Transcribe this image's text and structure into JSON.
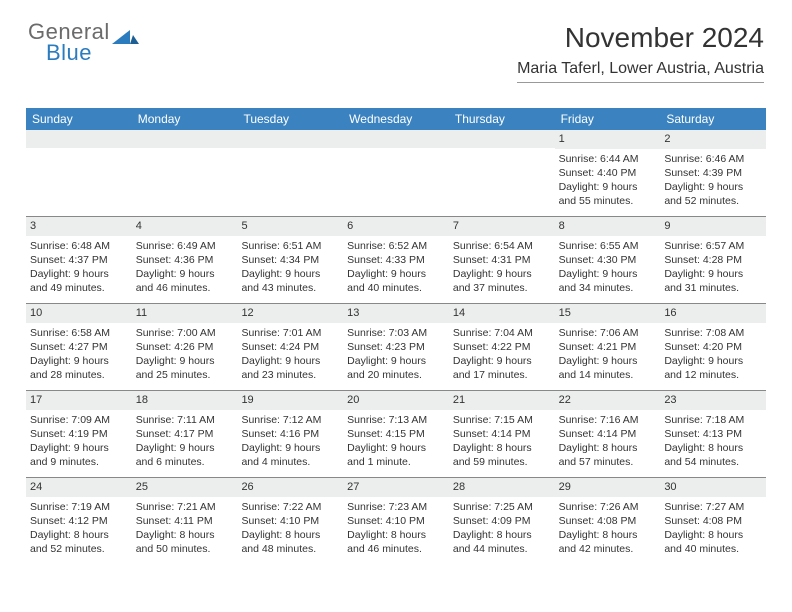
{
  "logo": {
    "word1": "General",
    "word2": "Blue"
  },
  "title": "November 2024",
  "location": "Maria Taferl, Lower Austria, Austria",
  "day_names": [
    "Sunday",
    "Monday",
    "Tuesday",
    "Wednesday",
    "Thursday",
    "Friday",
    "Saturday"
  ],
  "colors": {
    "header_bg": "#3b83c0",
    "header_text": "#ffffff",
    "daynum_bg": "#eceded",
    "text": "#333333",
    "logo_gray": "#6b6b6b",
    "logo_blue": "#2b7bbf"
  },
  "weeks": [
    [
      null,
      null,
      null,
      null,
      null,
      {
        "n": "1",
        "sr": "Sunrise: 6:44 AM",
        "ss": "Sunset: 4:40 PM",
        "d1": "Daylight: 9 hours",
        "d2": "and 55 minutes."
      },
      {
        "n": "2",
        "sr": "Sunrise: 6:46 AM",
        "ss": "Sunset: 4:39 PM",
        "d1": "Daylight: 9 hours",
        "d2": "and 52 minutes."
      }
    ],
    [
      {
        "n": "3",
        "sr": "Sunrise: 6:48 AM",
        "ss": "Sunset: 4:37 PM",
        "d1": "Daylight: 9 hours",
        "d2": "and 49 minutes."
      },
      {
        "n": "4",
        "sr": "Sunrise: 6:49 AM",
        "ss": "Sunset: 4:36 PM",
        "d1": "Daylight: 9 hours",
        "d2": "and 46 minutes."
      },
      {
        "n": "5",
        "sr": "Sunrise: 6:51 AM",
        "ss": "Sunset: 4:34 PM",
        "d1": "Daylight: 9 hours",
        "d2": "and 43 minutes."
      },
      {
        "n": "6",
        "sr": "Sunrise: 6:52 AM",
        "ss": "Sunset: 4:33 PM",
        "d1": "Daylight: 9 hours",
        "d2": "and 40 minutes."
      },
      {
        "n": "7",
        "sr": "Sunrise: 6:54 AM",
        "ss": "Sunset: 4:31 PM",
        "d1": "Daylight: 9 hours",
        "d2": "and 37 minutes."
      },
      {
        "n": "8",
        "sr": "Sunrise: 6:55 AM",
        "ss": "Sunset: 4:30 PM",
        "d1": "Daylight: 9 hours",
        "d2": "and 34 minutes."
      },
      {
        "n": "9",
        "sr": "Sunrise: 6:57 AM",
        "ss": "Sunset: 4:28 PM",
        "d1": "Daylight: 9 hours",
        "d2": "and 31 minutes."
      }
    ],
    [
      {
        "n": "10",
        "sr": "Sunrise: 6:58 AM",
        "ss": "Sunset: 4:27 PM",
        "d1": "Daylight: 9 hours",
        "d2": "and 28 minutes."
      },
      {
        "n": "11",
        "sr": "Sunrise: 7:00 AM",
        "ss": "Sunset: 4:26 PM",
        "d1": "Daylight: 9 hours",
        "d2": "and 25 minutes."
      },
      {
        "n": "12",
        "sr": "Sunrise: 7:01 AM",
        "ss": "Sunset: 4:24 PM",
        "d1": "Daylight: 9 hours",
        "d2": "and 23 minutes."
      },
      {
        "n": "13",
        "sr": "Sunrise: 7:03 AM",
        "ss": "Sunset: 4:23 PM",
        "d1": "Daylight: 9 hours",
        "d2": "and 20 minutes."
      },
      {
        "n": "14",
        "sr": "Sunrise: 7:04 AM",
        "ss": "Sunset: 4:22 PM",
        "d1": "Daylight: 9 hours",
        "d2": "and 17 minutes."
      },
      {
        "n": "15",
        "sr": "Sunrise: 7:06 AM",
        "ss": "Sunset: 4:21 PM",
        "d1": "Daylight: 9 hours",
        "d2": "and 14 minutes."
      },
      {
        "n": "16",
        "sr": "Sunrise: 7:08 AM",
        "ss": "Sunset: 4:20 PM",
        "d1": "Daylight: 9 hours",
        "d2": "and 12 minutes."
      }
    ],
    [
      {
        "n": "17",
        "sr": "Sunrise: 7:09 AM",
        "ss": "Sunset: 4:19 PM",
        "d1": "Daylight: 9 hours",
        "d2": "and 9 minutes."
      },
      {
        "n": "18",
        "sr": "Sunrise: 7:11 AM",
        "ss": "Sunset: 4:17 PM",
        "d1": "Daylight: 9 hours",
        "d2": "and 6 minutes."
      },
      {
        "n": "19",
        "sr": "Sunrise: 7:12 AM",
        "ss": "Sunset: 4:16 PM",
        "d1": "Daylight: 9 hours",
        "d2": "and 4 minutes."
      },
      {
        "n": "20",
        "sr": "Sunrise: 7:13 AM",
        "ss": "Sunset: 4:15 PM",
        "d1": "Daylight: 9 hours",
        "d2": "and 1 minute."
      },
      {
        "n": "21",
        "sr": "Sunrise: 7:15 AM",
        "ss": "Sunset: 4:14 PM",
        "d1": "Daylight: 8 hours",
        "d2": "and 59 minutes."
      },
      {
        "n": "22",
        "sr": "Sunrise: 7:16 AM",
        "ss": "Sunset: 4:14 PM",
        "d1": "Daylight: 8 hours",
        "d2": "and 57 minutes."
      },
      {
        "n": "23",
        "sr": "Sunrise: 7:18 AM",
        "ss": "Sunset: 4:13 PM",
        "d1": "Daylight: 8 hours",
        "d2": "and 54 minutes."
      }
    ],
    [
      {
        "n": "24",
        "sr": "Sunrise: 7:19 AM",
        "ss": "Sunset: 4:12 PM",
        "d1": "Daylight: 8 hours",
        "d2": "and 52 minutes."
      },
      {
        "n": "25",
        "sr": "Sunrise: 7:21 AM",
        "ss": "Sunset: 4:11 PM",
        "d1": "Daylight: 8 hours",
        "d2": "and 50 minutes."
      },
      {
        "n": "26",
        "sr": "Sunrise: 7:22 AM",
        "ss": "Sunset: 4:10 PM",
        "d1": "Daylight: 8 hours",
        "d2": "and 48 minutes."
      },
      {
        "n": "27",
        "sr": "Sunrise: 7:23 AM",
        "ss": "Sunset: 4:10 PM",
        "d1": "Daylight: 8 hours",
        "d2": "and 46 minutes."
      },
      {
        "n": "28",
        "sr": "Sunrise: 7:25 AM",
        "ss": "Sunset: 4:09 PM",
        "d1": "Daylight: 8 hours",
        "d2": "and 44 minutes."
      },
      {
        "n": "29",
        "sr": "Sunrise: 7:26 AM",
        "ss": "Sunset: 4:08 PM",
        "d1": "Daylight: 8 hours",
        "d2": "and 42 minutes."
      },
      {
        "n": "30",
        "sr": "Sunrise: 7:27 AM",
        "ss": "Sunset: 4:08 PM",
        "d1": "Daylight: 8 hours",
        "d2": "and 40 minutes."
      }
    ]
  ]
}
